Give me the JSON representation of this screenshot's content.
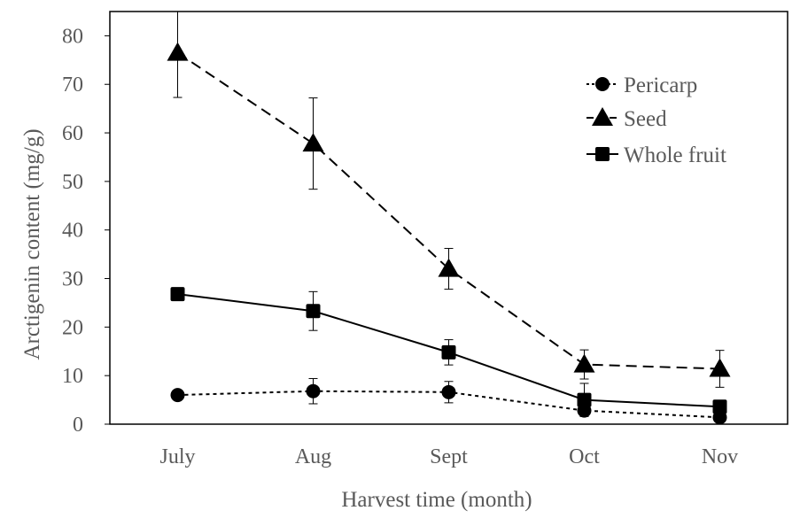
{
  "chart_data": {
    "type": "line",
    "title": "",
    "xlabel": "Harvest time (month)",
    "ylabel": "Arctigenin content (mg/g)",
    "categories": [
      "July",
      "Aug",
      "Sept",
      "Oct",
      "Nov"
    ],
    "ylim": [
      0,
      85
    ],
    "yticks": [
      0,
      10,
      20,
      30,
      40,
      50,
      60,
      70,
      80
    ],
    "grid": false,
    "legend_position": "top-right",
    "series": [
      {
        "name": "Pericarp",
        "marker": "circle",
        "line_style": "dotted",
        "color": "#000000",
        "values": [
          6.0,
          6.8,
          6.6,
          2.8,
          1.4
        ],
        "errors": [
          0.6,
          2.6,
          2.2,
          1.2,
          0.6
        ]
      },
      {
        "name": "Seed",
        "marker": "triangle",
        "line_style": "dashed",
        "color": "#000000",
        "values": [
          76.5,
          57.8,
          32.0,
          12.3,
          11.4
        ],
        "errors": [
          9.2,
          9.4,
          4.2,
          3.0,
          3.8
        ]
      },
      {
        "name": "Whole fruit",
        "marker": "square",
        "line_style": "solid",
        "color": "#000000",
        "values": [
          26.8,
          23.3,
          14.8,
          5.0,
          3.6
        ],
        "errors": [
          1.0,
          4.0,
          2.6,
          3.4,
          1.2
        ]
      }
    ]
  }
}
